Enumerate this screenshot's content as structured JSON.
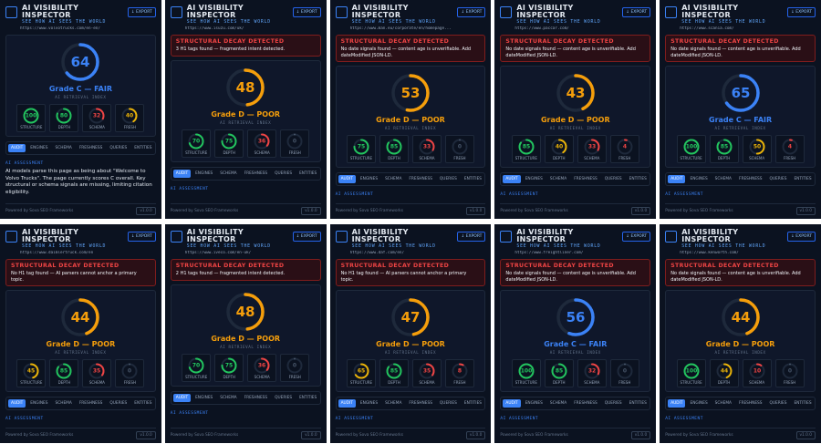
{
  "ui": {
    "title": "AI VISIBILITY INSPECTOR",
    "subtitle": "SEE HOW AI SEES THE WORLD",
    "export": "↓ EXPORT",
    "alert_title": "STRUCTURAL DECAY DETECTED",
    "index_label": "AI RETRIEVAL INDEX",
    "metric_labels": [
      "STRUCTURE",
      "DEPTH",
      "SCHEMA",
      "FRESH"
    ],
    "tabs": [
      "AUDIT",
      "ENGINES",
      "SCHEMA",
      "FRESHNESS",
      "QUERIES",
      "ENTITIES"
    ],
    "assessment_label": "AI ASSESSMENT",
    "footer": "Powered by Sova SEO Frameworks",
    "version": "v1.0.0",
    "gauge_range": [
      0,
      100
    ]
  },
  "panels": [
    {
      "url": "https://www.volvotrucks.com/en-en/",
      "alert": null,
      "score": 64,
      "grade": "Grade C — FAIR",
      "color": "#3b82f6",
      "metrics": [
        100,
        80,
        32,
        40
      ],
      "assessment": "AI models parse this page as being about \"Welcome to Volvo Trucks\". The page currently scores C overall. Key structural or schema signals are missing, limiting citation eligibility."
    },
    {
      "url": "https://www.isuzu.com/uk/",
      "alert": "3 H1 tags found — fragmented intent detected.",
      "score": 48,
      "grade": "Grade D — POOR",
      "color": "#f59e0b",
      "metrics": [
        70,
        75,
        36,
        0
      ]
    },
    {
      "url": "https://www.man.eu/corporate/en/homepage...",
      "alert": "No date signals found — content age is unverifiable. Add dateModified JSON-LD.",
      "score": 53,
      "grade": "Grade D — POOR",
      "color": "#f59e0b",
      "metrics": [
        75,
        85,
        33,
        0
      ]
    },
    {
      "url": "https://www.paccar.com/",
      "alert": "No date signals found — content age is unverifiable. Add dateModified JSON-LD.",
      "score": 43,
      "grade": "Grade D — POOR",
      "color": "#f59e0b",
      "metrics": [
        85,
        40,
        33,
        4
      ]
    },
    {
      "url": "https://www.scania.com/",
      "alert": "No date signals found — content age is unverifiable. Add dateModified JSON-LD.",
      "score": 65,
      "grade": "Grade C — FAIR",
      "color": "#3b82f6",
      "metrics": [
        100,
        85,
        50,
        4
      ]
    },
    {
      "url": "https://www.daimlertruck.com/en",
      "alert": "No H1 tag found — AI parsers cannot anchor a primary topic.",
      "score": 44,
      "grade": "Grade D — POOR",
      "color": "#f59e0b",
      "metrics": [
        45,
        85,
        35,
        0
      ]
    },
    {
      "url": "https://www.iveco.com/en-uk/",
      "alert": "2 H1 tags found — fragmented intent detected.",
      "score": 48,
      "grade": "Grade D — POOR",
      "color": "#f59e0b",
      "metrics": [
        70,
        75,
        36,
        0
      ]
    },
    {
      "url": "https://www.daf.com/en/",
      "alert": "No H1 tag found — AI parsers cannot anchor a primary topic.",
      "score": 47,
      "grade": "Grade D — POOR",
      "color": "#f59e0b",
      "metrics": [
        65,
        85,
        35,
        8
      ]
    },
    {
      "url": "https://www.freightliner.com/",
      "alert": "No date signals found — content age is unverifiable. Add dateModified JSON-LD.",
      "score": 56,
      "grade": "Grade C — FAIR",
      "color": "#3b82f6",
      "metrics": [
        100,
        85,
        32,
        0
      ]
    },
    {
      "url": "https://www.kenworth.com/",
      "alert": "No date signals found — content age is unverifiable. Add dateModified JSON-LD.",
      "score": 44,
      "grade": "Grade D — POOR",
      "color": "#f59e0b",
      "metrics": [
        100,
        44,
        10,
        0
      ]
    }
  ]
}
